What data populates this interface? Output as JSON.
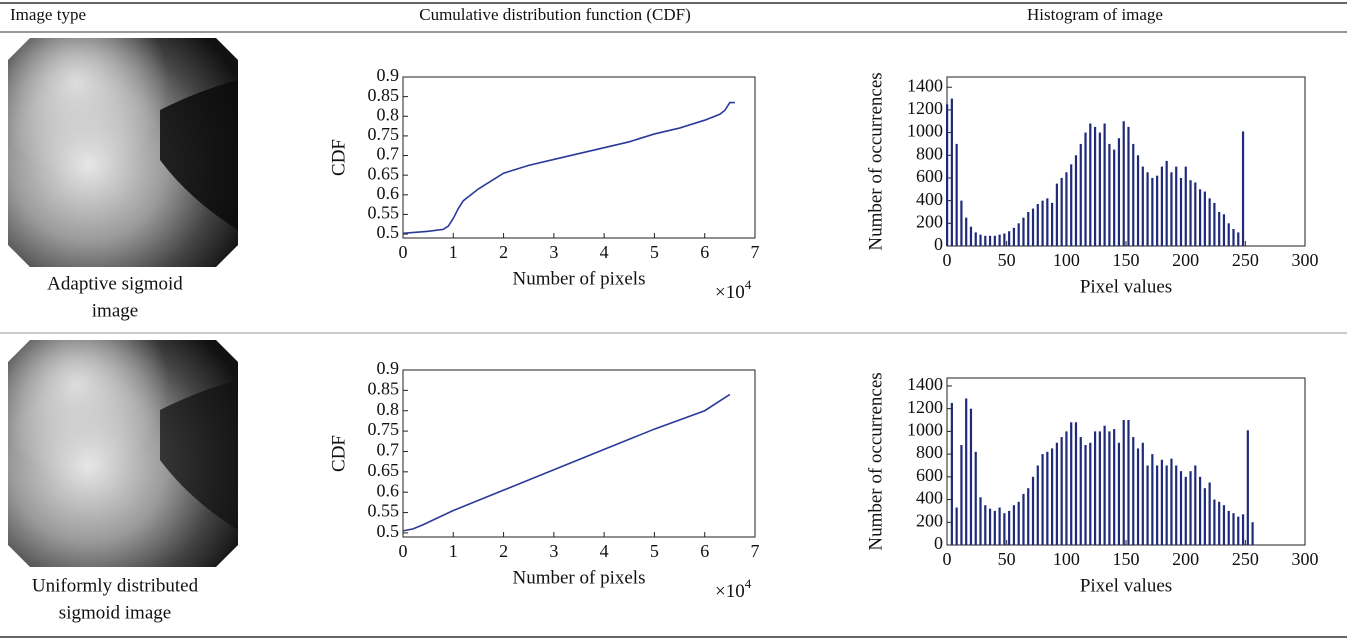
{
  "headers": [
    "Image type",
    "Cumulative distribution function (CDF)",
    "Histogram of image"
  ],
  "rows": [
    {
      "label": [
        "Adaptive sigmoid",
        "image"
      ]
    },
    {
      "label": [
        "Uniformly distributed",
        "sigmoid image"
      ]
    }
  ],
  "chart_data": [
    {
      "type": "line",
      "xlabel": "Number of pixels",
      "ylabel": "CDF",
      "x_scale_base": "×10",
      "x_scale_exponent": "4",
      "x": [
        0,
        0.5,
        0.8,
        0.9,
        1.0,
        1.1,
        1.2,
        1.5,
        2,
        2.5,
        3,
        3.5,
        4,
        4.5,
        5,
        5.5,
        6,
        6.3,
        6.4,
        6.5,
        6.6
      ],
      "values": [
        0.502,
        0.507,
        0.512,
        0.52,
        0.54,
        0.565,
        0.585,
        0.615,
        0.655,
        0.675,
        0.69,
        0.705,
        0.72,
        0.735,
        0.755,
        0.77,
        0.79,
        0.805,
        0.815,
        0.835,
        0.835
      ],
      "color": "#2b3a9a",
      "xlim": [
        0,
        7
      ],
      "ylim": [
        0.49,
        0.9
      ],
      "xticks": [
        0,
        1,
        2,
        3,
        4,
        5,
        6,
        7
      ],
      "yticks": [
        0.5,
        0.55,
        0.6,
        0.65,
        0.7,
        0.75,
        0.8,
        0.85,
        0.9
      ]
    },
    {
      "type": "bar",
      "xlabel": "Pixel values",
      "ylabel": "Number of occurrences",
      "x": [
        0,
        4,
        8,
        12,
        16,
        20,
        24,
        28,
        32,
        36,
        40,
        44,
        48,
        52,
        56,
        60,
        64,
        68,
        72,
        76,
        80,
        84,
        88,
        92,
        96,
        100,
        104,
        108,
        112,
        116,
        120,
        124,
        128,
        132,
        136,
        140,
        144,
        148,
        152,
        156,
        160,
        164,
        168,
        172,
        176,
        180,
        184,
        188,
        192,
        196,
        200,
        204,
        208,
        212,
        216,
        220,
        224,
        228,
        232,
        236,
        240,
        244,
        248,
        252
      ],
      "values": [
        1250,
        1300,
        900,
        400,
        250,
        170,
        120,
        100,
        90,
        90,
        90,
        100,
        110,
        130,
        160,
        200,
        250,
        300,
        330,
        370,
        400,
        420,
        380,
        550,
        600,
        650,
        720,
        800,
        900,
        1000,
        1080,
        1050,
        1000,
        1080,
        900,
        850,
        950,
        1100,
        1050,
        900,
        800,
        700,
        650,
        600,
        620,
        700,
        750,
        650,
        700,
        600,
        700,
        580,
        560,
        500,
        480,
        420,
        380,
        300,
        280,
        200,
        150,
        120,
        1010,
        0
      ],
      "color": "#1f2a7a",
      "xlim": [
        0,
        300
      ],
      "ylim": [
        0,
        1490
      ],
      "xticks": [
        0,
        50,
        100,
        150,
        200,
        250,
        300
      ],
      "yticks": [
        0,
        200,
        400,
        600,
        800,
        1000,
        1200,
        1400
      ]
    },
    {
      "type": "line",
      "xlabel": "Number of pixels",
      "ylabel": "CDF",
      "x_scale_base": "×10",
      "x_scale_exponent": "4",
      "x": [
        0,
        0.2,
        0.4,
        1,
        2,
        3,
        4,
        5,
        6,
        6.5
      ],
      "values": [
        0.505,
        0.51,
        0.52,
        0.555,
        0.605,
        0.655,
        0.705,
        0.755,
        0.8,
        0.84
      ],
      "color": "#2b3a9a",
      "xlim": [
        0,
        7
      ],
      "ylim": [
        0.49,
        0.9
      ],
      "xticks": [
        0,
        1,
        2,
        3,
        4,
        5,
        6,
        7
      ],
      "yticks": [
        0.5,
        0.55,
        0.6,
        0.65,
        0.7,
        0.75,
        0.8,
        0.85,
        0.9
      ]
    },
    {
      "type": "bar",
      "xlabel": "Pixel values",
      "ylabel": "Number of occurrences",
      "x": [
        4,
        8,
        12,
        16,
        20,
        24,
        28,
        32,
        36,
        40,
        44,
        48,
        52,
        56,
        60,
        64,
        68,
        72,
        76,
        80,
        84,
        88,
        92,
        96,
        100,
        104,
        108,
        112,
        116,
        120,
        124,
        128,
        132,
        136,
        140,
        144,
        148,
        152,
        156,
        160,
        164,
        168,
        172,
        176,
        180,
        184,
        188,
        192,
        196,
        200,
        204,
        208,
        212,
        216,
        220,
        224,
        228,
        232,
        236,
        240,
        244,
        248,
        252,
        256
      ],
      "values": [
        1250,
        330,
        880,
        1290,
        1200,
        820,
        420,
        350,
        320,
        300,
        330,
        280,
        300,
        350,
        380,
        450,
        500,
        600,
        700,
        800,
        820,
        850,
        900,
        950,
        1000,
        1080,
        1080,
        950,
        880,
        900,
        1000,
        1000,
        1050,
        1000,
        1020,
        900,
        1100,
        1100,
        950,
        850,
        900,
        700,
        800,
        700,
        750,
        700,
        760,
        700,
        650,
        600,
        650,
        700,
        600,
        500,
        550,
        400,
        380,
        350,
        300,
        280,
        250,
        270,
        1010,
        200
      ],
      "color": "#1f2a7a",
      "xlim": [
        0,
        300
      ],
      "ylim": [
        0,
        1470
      ],
      "xticks": [
        0,
        50,
        100,
        150,
        200,
        250,
        300
      ],
      "yticks": [
        0,
        200,
        400,
        600,
        800,
        1000,
        1200,
        1400
      ]
    }
  ]
}
